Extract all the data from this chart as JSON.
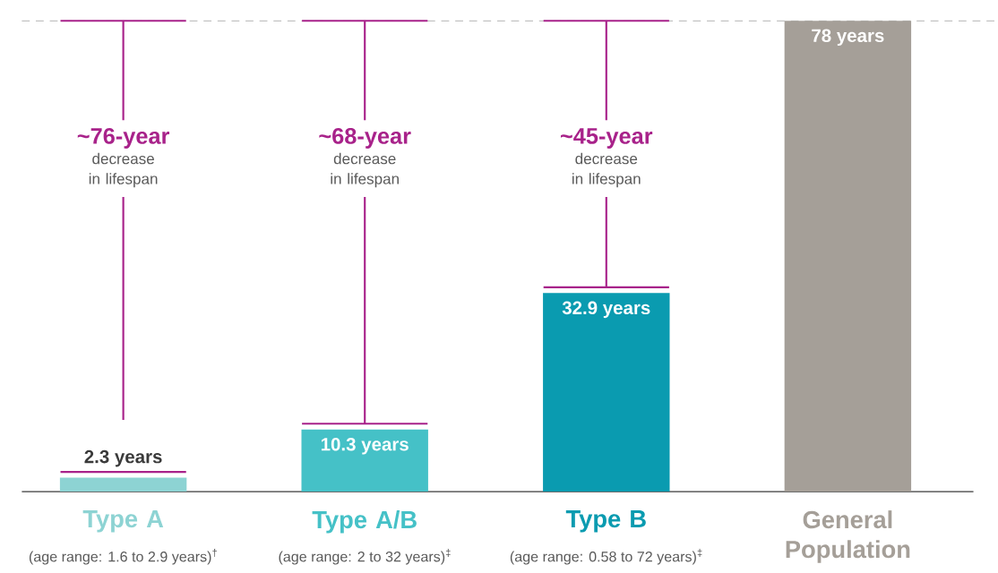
{
  "chart_data": {
    "type": "bar",
    "categories": [
      "Type A",
      "Type A/B",
      "Type B",
      "General Population"
    ],
    "values": [
      2.3,
      10.3,
      32.9,
      78
    ],
    "colors": [
      "#8dd3d3",
      "#45c1c7",
      "#0a9bb0",
      "#a59f98"
    ],
    "value_labels": [
      "2.3 years",
      "10.3 years",
      "32.9 years",
      "78 years"
    ],
    "ref_lines": [
      {
        "axis": "y",
        "value": 78,
        "color": "#a8a8a8",
        "line_style": "dashed"
      }
    ],
    "annotations": [
      "~76-year",
      "decrease in lifespan",
      "~68-year",
      "decrease in lifespan",
      "~45-year",
      "decrease in lifespan",
      "(age range: 1.6 to 2.9 years)$^{†}$",
      "(age range: 2 to 32 years)$^{‡}$",
      "(age range: 0.58 to 72 years)$^{‡}$"
    ]
  }
}
